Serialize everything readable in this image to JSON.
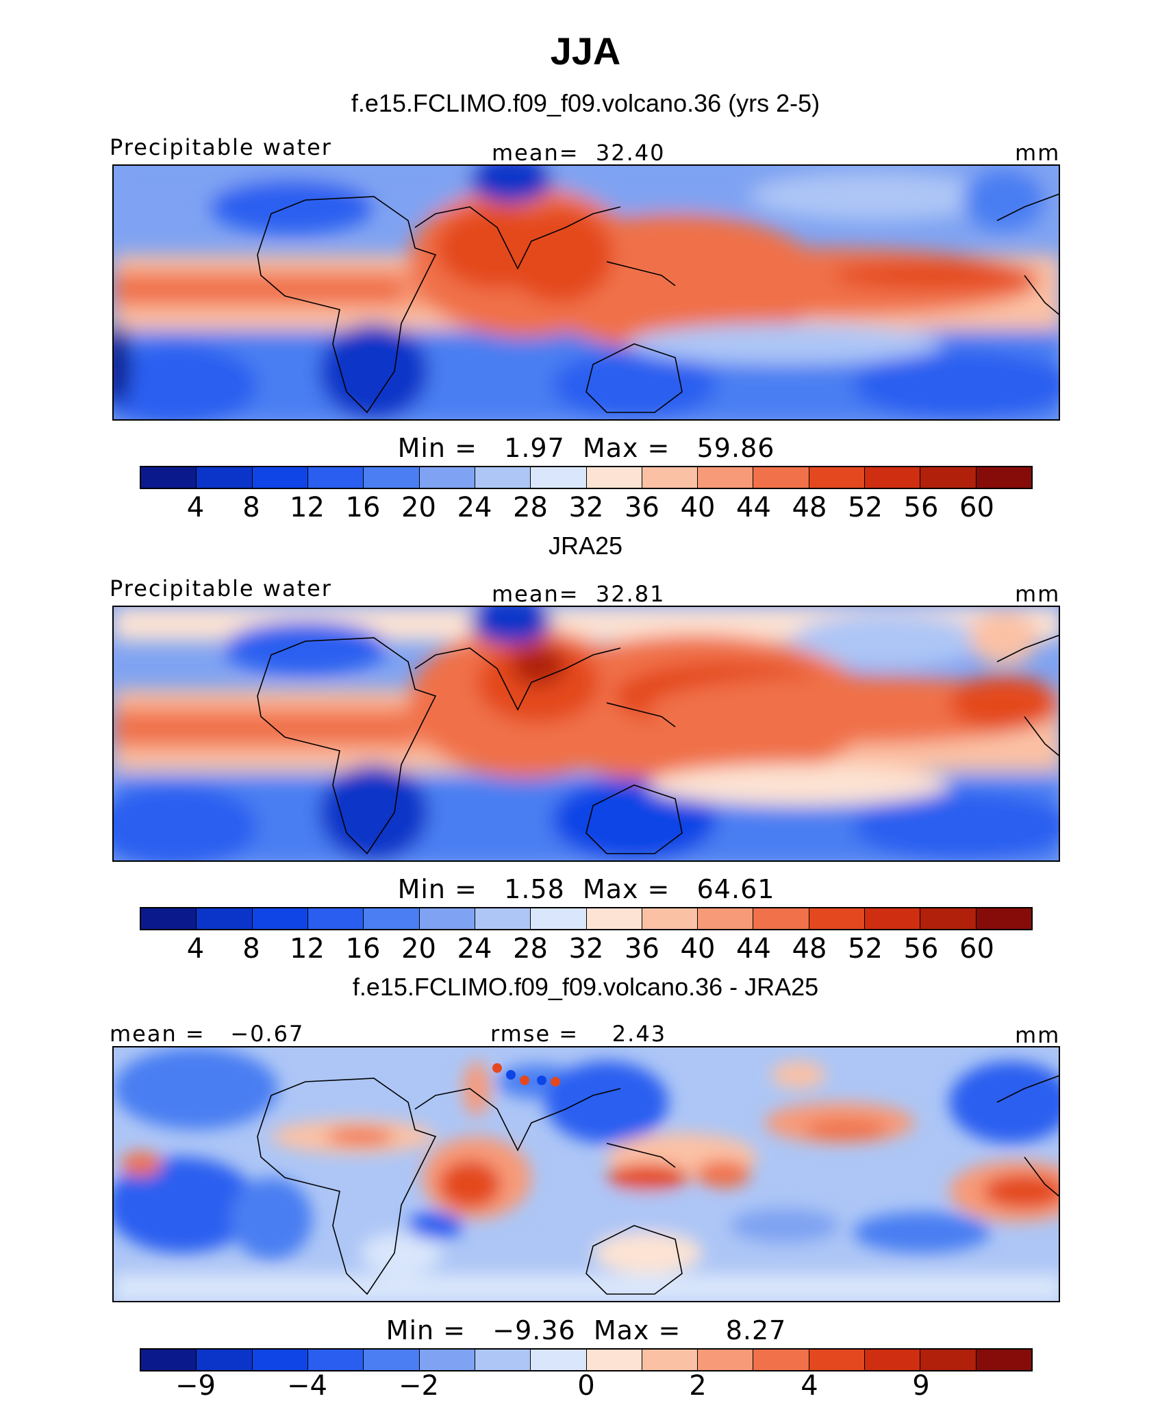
{
  "title": "JJA",
  "panels": [
    {
      "title": "f.e15.FCLIMO.f09_f09.volcano.36 (yrs 2-5)",
      "left_label": "Precipitable water",
      "center_label": "mean=  32.40",
      "right_label": "mm",
      "minmax": "Min =   1.97  Max =   59.86",
      "colorbar_ticks": [
        "4",
        "8",
        "12",
        "16",
        "20",
        "24",
        "28",
        "32",
        "36",
        "40",
        "44",
        "48",
        "52",
        "56",
        "60"
      ],
      "colors": [
        "#0a1a8c",
        "#0a35c8",
        "#0f45e6",
        "#2a5ef0",
        "#4a7ef2",
        "#7fa3f2",
        "#adc6f6",
        "#d9e6fb",
        "#fde3d3",
        "#fbc1a5",
        "#f79a78",
        "#f0714a",
        "#e4481f",
        "#cf2e10",
        "#b0200b",
        "#850c08"
      ]
    },
    {
      "title": "JRA25",
      "left_label": "Precipitable water",
      "center_label": "mean=  32.81",
      "right_label": "mm",
      "minmax": "Min =   1.58  Max =   64.61",
      "colorbar_ticks": [
        "4",
        "8",
        "12",
        "16",
        "20",
        "24",
        "28",
        "32",
        "36",
        "40",
        "44",
        "48",
        "52",
        "56",
        "60"
      ],
      "colors": [
        "#0a1a8c",
        "#0a35c8",
        "#0f45e6",
        "#2a5ef0",
        "#4a7ef2",
        "#7fa3f2",
        "#adc6f6",
        "#d9e6fb",
        "#fde3d3",
        "#fbc1a5",
        "#f79a78",
        "#f0714a",
        "#e4481f",
        "#cf2e10",
        "#b0200b",
        "#850c08"
      ]
    },
    {
      "title": "f.e15.FCLIMO.f09_f09.volcano.36 - JRA25",
      "left_label": "mean =   −0.67",
      "center_label": "rmse =    2.43",
      "right_label": "mm",
      "minmax": "Min =   −9.36  Max =     8.27",
      "colorbar_ticks": [
        "−9",
        "−4",
        "−2",
        "0",
        "2",
        "4",
        "9"
      ],
      "colors": [
        "#0a1a8c",
        "#0a35c8",
        "#0f45e6",
        "#2a5ef0",
        "#4a7ef2",
        "#7fa3f2",
        "#adc6f6",
        "#d9e6fb",
        "#fde3d3",
        "#fbc1a5",
        "#f79a78",
        "#f0714a",
        "#e4481f",
        "#cf2e10",
        "#b0200b",
        "#850c08"
      ]
    }
  ]
}
